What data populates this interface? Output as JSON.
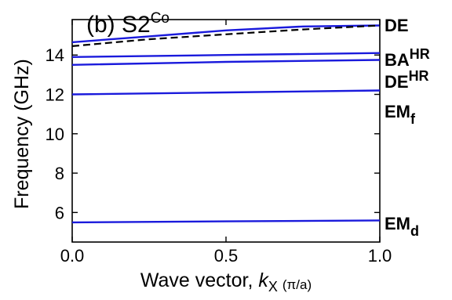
{
  "chart_data": {
    "type": "line",
    "title": {
      "main": "(b) S2",
      "sup": "Co"
    },
    "xlabel": {
      "main": "Wave vector, ",
      "var": "k",
      "sub": "X",
      "unit": "(π/a)"
    },
    "ylabel": "Frequency (GHz)",
    "xlim": [
      0.0,
      1.0
    ],
    "ylim": [
      4.5,
      15.8
    ],
    "xticks": [
      0.0,
      0.5,
      1.0
    ],
    "xtick_labels": [
      "0.0",
      "0.5",
      "1.0"
    ],
    "yticks": [
      6,
      8,
      10,
      12,
      14
    ],
    "ytick_labels": [
      "6",
      "8",
      "10",
      "12",
      "14"
    ],
    "grid": false,
    "series": [
      {
        "style": "solid",
        "color": "#1a1adc",
        "x": [
          0.0,
          0.25,
          0.5,
          0.75,
          1.0
        ],
        "y": [
          14.65,
          14.95,
          15.25,
          15.45,
          15.5
        ]
      },
      {
        "style": "dashed",
        "color": "#000000",
        "x": [
          0.0,
          0.25,
          0.5,
          0.75,
          1.0
        ],
        "y": [
          14.45,
          14.8,
          15.05,
          15.3,
          15.5
        ]
      },
      {
        "style": "solid",
        "color": "#1a1adc",
        "x": [
          0.0,
          0.5,
          1.0
        ],
        "y": [
          13.9,
          14.0,
          14.1
        ]
      },
      {
        "style": "solid",
        "color": "#1a1adc",
        "x": [
          0.0,
          0.5,
          1.0
        ],
        "y": [
          13.5,
          13.65,
          13.75
        ]
      },
      {
        "style": "solid",
        "color": "#1a1adc",
        "x": [
          0.0,
          0.5,
          1.0
        ],
        "y": [
          12.0,
          12.1,
          12.2
        ]
      },
      {
        "style": "solid",
        "color": "#1a1adc",
        "x": [
          0.0,
          0.5,
          1.0
        ],
        "y": [
          5.5,
          5.55,
          5.6
        ]
      }
    ],
    "mode_labels": [
      {
        "main": "DE",
        "sup": "",
        "sub": ""
      },
      {
        "main": "BA",
        "sup": "HR",
        "sub": ""
      },
      {
        "main": "DE",
        "sup": "HR",
        "sub": ""
      },
      {
        "main": "EM",
        "sup": "",
        "sub": "f"
      },
      {
        "main": "EM",
        "sup": "",
        "sub": "d"
      }
    ]
  }
}
